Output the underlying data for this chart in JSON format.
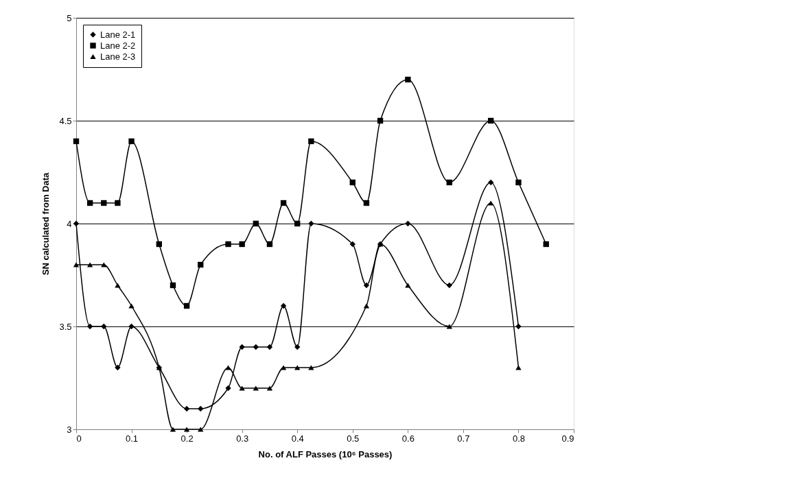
{
  "chart_data": {
    "type": "line",
    "xlabel": "No. of ALF Passes (10⁶ Passes)",
    "ylabel": "SN calculated from Data",
    "xlim": [
      0,
      0.9
    ],
    "xticks": [
      0,
      0.1,
      0.2,
      0.3,
      0.4,
      0.5,
      0.6,
      0.7,
      0.8,
      0.9
    ],
    "ylim": [
      3,
      5
    ],
    "yticks": [
      3,
      3.5,
      4,
      4.5,
      5
    ],
    "grid": "y",
    "legend": "top left",
    "line_style": "solid",
    "series": [
      {
        "name": "Lane 2-1",
        "color": "#000000",
        "marker": "diamond",
        "x": [
          0,
          0.025,
          0.05,
          0.075,
          0.1,
          0.15,
          0.2,
          0.225,
          0.275,
          0.3,
          0.325,
          0.35,
          0.375,
          0.4,
          0.425,
          0.5,
          0.525,
          0.55,
          0.6,
          0.675,
          0.75,
          0.8
        ],
        "values": [
          4.0,
          3.5,
          3.5,
          3.3,
          3.5,
          3.3,
          3.1,
          3.1,
          3.2,
          3.4,
          3.4,
          3.4,
          3.6,
          3.4,
          4.0,
          3.9,
          3.7,
          3.9,
          4.0,
          3.7,
          4.2,
          3.5
        ]
      },
      {
        "name": "Lane 2-2",
        "color": "#000000",
        "marker": "square",
        "x": [
          0,
          0.025,
          0.05,
          0.075,
          0.1,
          0.15,
          0.175,
          0.2,
          0.225,
          0.275,
          0.3,
          0.325,
          0.35,
          0.375,
          0.4,
          0.425,
          0.5,
          0.525,
          0.55,
          0.6,
          0.675,
          0.75,
          0.8,
          0.85
        ],
        "values": [
          4.4,
          4.1,
          4.1,
          4.1,
          4.4,
          3.9,
          3.7,
          3.6,
          3.8,
          3.9,
          3.9,
          4.0,
          3.9,
          4.1,
          4.0,
          4.4,
          4.2,
          4.1,
          4.5,
          4.7,
          4.2,
          4.5,
          4.2,
          3.9
        ]
      },
      {
        "name": "Lane 2-3",
        "color": "#000000",
        "marker": "triangle",
        "x": [
          0,
          0.025,
          0.05,
          0.075,
          0.1,
          0.15,
          0.175,
          0.2,
          0.225,
          0.275,
          0.3,
          0.325,
          0.35,
          0.375,
          0.4,
          0.425,
          0.525,
          0.55,
          0.6,
          0.675,
          0.75,
          0.8
        ],
        "values": [
          3.8,
          3.8,
          3.8,
          3.7,
          3.6,
          3.3,
          3.0,
          3.0,
          3.0,
          3.3,
          3.2,
          3.2,
          3.2,
          3.3,
          3.3,
          3.3,
          3.6,
          3.9,
          3.7,
          3.5,
          4.1,
          3.3
        ]
      }
    ]
  }
}
